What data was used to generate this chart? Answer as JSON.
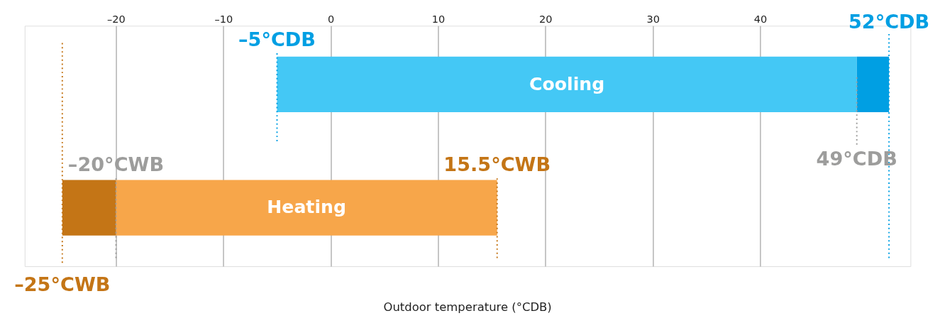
{
  "chart_data": {
    "type": "bar",
    "orientation": "horizontal",
    "categories": [
      "Cooling",
      "Heating"
    ],
    "series": [
      {
        "colors": [
          "#44c8f5",
          "#f7a64a"
        ],
        "values": [
          54,
          35.5
        ],
        "base": [
          -5,
          -20
        ]
      },
      {
        "colors": [
          "#009fe3",
          "#c47516"
        ],
        "values": [
          3,
          5
        ],
        "base": [
          49,
          -25
        ]
      }
    ],
    "xlabel": "Outdoor temperature (°CDB)",
    "xlim": [
      -28.5,
      54
    ],
    "xticks": [
      {
        "value": -20,
        "label": "–20"
      },
      {
        "value": -10,
        "label": "–10"
      },
      0,
      10,
      20,
      30,
      40
    ],
    "grid": "x",
    "tick_labels": "x",
    "ref_lines": [
      {
        "axis": "x",
        "value": 52,
        "label": "52°CDB",
        "color": "#009fe3",
        "line_style": "dotted"
      },
      {
        "axis": "x",
        "value": -5,
        "label": "–5°CDB",
        "color": "#009fe3",
        "line_style": "dotted"
      },
      {
        "axis": "x",
        "value": 49,
        "label": "49°CDB",
        "color": "#9d9d9c",
        "line_style": "dotted"
      },
      {
        "axis": "x",
        "value": -20,
        "label": "–20°CWB",
        "color": "#9d9d9c",
        "line_style": "dotted"
      },
      {
        "axis": "x",
        "value": 15.5,
        "label": "15.5°CWB",
        "color": "#c47516",
        "line_style": "dotted"
      },
      {
        "axis": "x",
        "value": -25,
        "label": "–25°CWB",
        "color": "#c47516",
        "line_style": "dotted"
      }
    ]
  }
}
